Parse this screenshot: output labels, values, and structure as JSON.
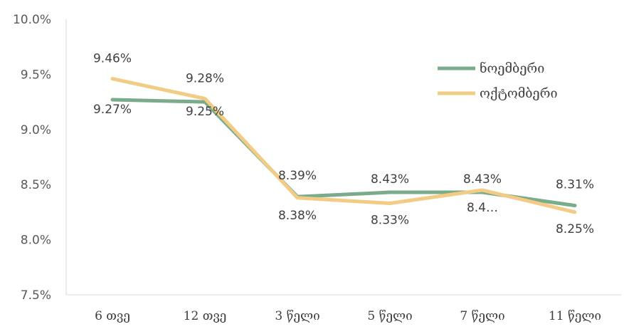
{
  "chart_data": {
    "type": "line",
    "categories": [
      "6 თვე",
      "12 თვე",
      "3 წელი",
      "5 წელი",
      "7 წელი",
      "11 წელი"
    ],
    "ylim": [
      0.075,
      0.1
    ],
    "yticks": [
      "7.5%",
      "8.0%",
      "8.5%",
      "9.0%",
      "9.5%",
      "10.0%"
    ],
    "ytick_values": [
      0.075,
      0.08,
      0.085,
      0.09,
      0.095,
      0.1
    ],
    "legend_position": "top-right",
    "grid": false,
    "series": [
      {
        "name": "ნოემბერი",
        "color": "#7aab8a",
        "values": [
          0.0927,
          0.0925,
          0.0839,
          0.0843,
          0.0843,
          0.0831
        ],
        "labels": [
          "9.27%",
          "9.25%",
          "8.39%",
          "8.43%",
          "8.43%",
          "8.31%"
        ]
      },
      {
        "name": "ოქტომბერი",
        "color": "#f2cc85",
        "values": [
          0.0946,
          0.0928,
          0.0838,
          0.0833,
          0.0845,
          0.0825
        ],
        "labels": [
          "9.46%",
          "9.28%",
          "8.38%",
          "8.33%",
          "8.4…",
          "8.25%"
        ]
      }
    ]
  }
}
